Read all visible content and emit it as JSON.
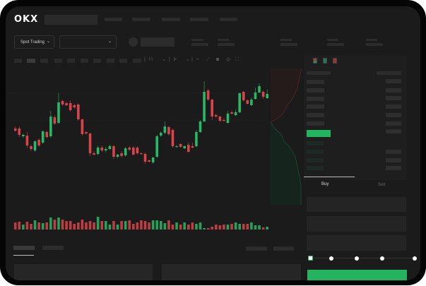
{
  "brand": {
    "logo": "OKX"
  },
  "toolbar": {
    "market_dropdown": "Spot Trading",
    "chevron": "⌄"
  },
  "order_form": {
    "tabs": [
      {
        "label": "Buy",
        "active": true
      },
      {
        "label": "Sell",
        "active": false
      }
    ],
    "slider_level_percent": 0
  },
  "colors": {
    "up": "#27b965",
    "down": "#d9434a",
    "background": "#1b1b1b",
    "accent": "#22b45f"
  },
  "chart_data": {
    "type": "candlestick",
    "candles": [
      [
        118,
        121,
        113,
        115
      ],
      [
        118,
        121,
        106,
        109
      ],
      [
        107,
        111,
        105,
        109
      ],
      [
        108,
        113,
        91,
        94
      ],
      [
        93,
        95,
        86,
        89
      ],
      [
        87,
        101,
        85,
        100
      ],
      [
        102,
        104,
        92,
        94
      ],
      [
        98,
        115,
        96,
        114
      ],
      [
        113,
        115,
        104,
        106
      ],
      [
        107,
        143,
        105,
        135
      ],
      [
        134,
        137,
        123,
        125
      ],
      [
        126,
        168,
        124,
        155
      ],
      [
        157,
        159,
        150,
        152
      ],
      [
        154,
        156,
        150,
        151
      ],
      [
        154,
        158,
        142,
        144
      ],
      [
        151,
        153,
        146,
        148
      ],
      [
        152,
        154,
        129,
        131
      ],
      [
        131,
        132,
        108,
        110
      ],
      [
        113,
        114,
        109,
        111
      ],
      [
        111,
        112,
        79,
        83
      ],
      [
        83,
        86,
        80,
        81
      ],
      [
        82,
        94,
        80,
        91
      ],
      [
        91,
        94,
        85,
        87
      ],
      [
        87,
        92,
        84,
        89
      ],
      [
        89,
        95,
        88,
        93
      ],
      [
        93,
        95,
        75,
        78
      ],
      [
        78,
        82,
        76,
        81
      ],
      [
        83,
        86,
        77,
        79
      ],
      [
        80,
        92,
        78,
        90
      ],
      [
        91,
        93,
        86,
        88
      ],
      [
        91,
        93,
        80,
        81
      ],
      [
        91,
        93,
        81,
        83
      ],
      [
        83,
        84,
        81,
        82
      ],
      [
        82,
        84,
        68,
        71
      ],
      [
        73,
        74,
        70,
        71
      ],
      [
        70,
        78,
        68,
        77
      ],
      [
        78,
        109,
        76,
        107
      ],
      [
        108,
        114,
        106,
        112
      ],
      [
        112,
        128,
        110,
        121
      ],
      [
        120,
        122,
        108,
        110
      ],
      [
        116,
        118,
        91,
        93
      ],
      [
        92,
        95,
        91,
        93
      ],
      [
        96,
        97,
        91,
        92
      ],
      [
        90,
        94,
        89,
        93
      ],
      [
        95,
        98,
        84,
        85
      ],
      [
        93,
        98,
        90,
        91
      ],
      [
        93,
        116,
        91,
        113
      ],
      [
        113,
        130,
        112,
        128
      ],
      [
        128,
        185,
        127,
        170
      ],
      [
        172,
        174,
        157,
        159
      ],
      [
        159,
        160,
        130,
        135
      ],
      [
        137,
        139,
        133,
        135
      ],
      [
        135,
        136,
        127,
        129
      ],
      [
        130,
        133,
        128,
        129
      ],
      [
        126,
        143,
        125,
        139
      ],
      [
        141,
        144,
        138,
        139
      ],
      [
        137,
        145,
        136,
        141
      ],
      [
        141,
        169,
        140,
        168
      ],
      [
        170,
        171,
        156,
        158
      ],
      [
        158,
        159,
        152,
        153
      ],
      [
        151,
        162,
        150,
        159
      ],
      [
        160,
        176,
        159,
        169
      ],
      [
        169,
        182,
        168,
        178
      ],
      [
        170,
        172,
        160,
        163
      ],
      [
        161,
        173,
        160,
        167
      ]
    ],
    "volumes": [
      10,
      11,
      7,
      11,
      8,
      13,
      10,
      9,
      10,
      17,
      14,
      17,
      14,
      12,
      12,
      8,
      10,
      14,
      10,
      12,
      10,
      18,
      12,
      12,
      7,
      12,
      7,
      12,
      12,
      13,
      8,
      10,
      13,
      12,
      10,
      13,
      13,
      12,
      9,
      13,
      7,
      10,
      7,
      10,
      7,
      10,
      8,
      10,
      2,
      2,
      4,
      7,
      6,
      7,
      7,
      8,
      10,
      8,
      8,
      8,
      10,
      6,
      6,
      3,
      4
    ]
  }
}
